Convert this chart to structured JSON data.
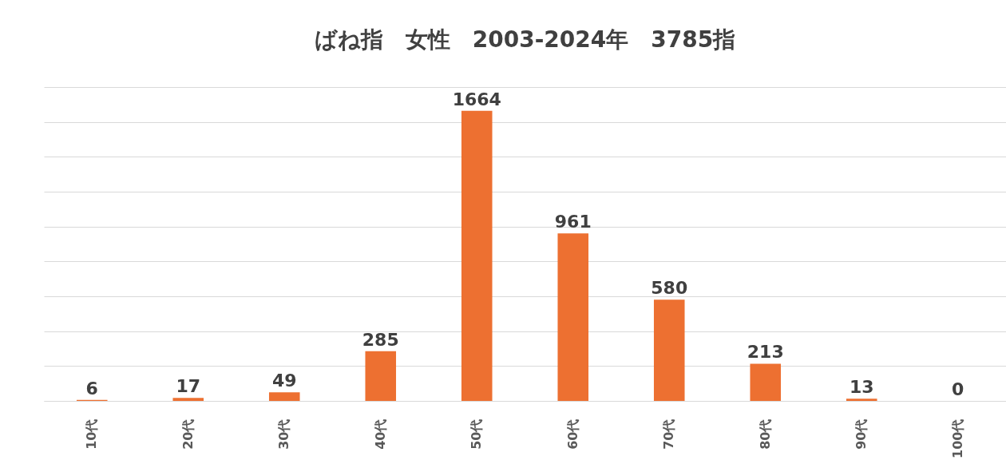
{
  "chart_data": {
    "type": "bar",
    "title": "ばね指　女性　2003-2024年　3785指",
    "categories": [
      "10代",
      "20代",
      "30代",
      "40代",
      "50代",
      "60代",
      "70代",
      "80代",
      "90代",
      "100代"
    ],
    "values": [
      6,
      17,
      49,
      285,
      1664,
      961,
      580,
      213,
      13,
      0
    ],
    "color": "#ed7031",
    "ylim": [
      0,
      1800
    ],
    "yticks": [
      {
        "value": 0,
        "label": null
      },
      {
        "value": 200,
        "label": null
      },
      {
        "value": 400,
        "label": null
      },
      {
        "value": 600,
        "label": null
      },
      {
        "value": 800,
        "label": null
      },
      {
        "value": 1000,
        "label": null
      },
      {
        "value": 1200,
        "label": null
      },
      {
        "value": 1400,
        "label": null
      },
      {
        "value": 1600,
        "label": null
      },
      {
        "value": 1800,
        "label": null
      }
    ],
    "grid": "y",
    "tick_labels": "x",
    "data_labels": true
  }
}
